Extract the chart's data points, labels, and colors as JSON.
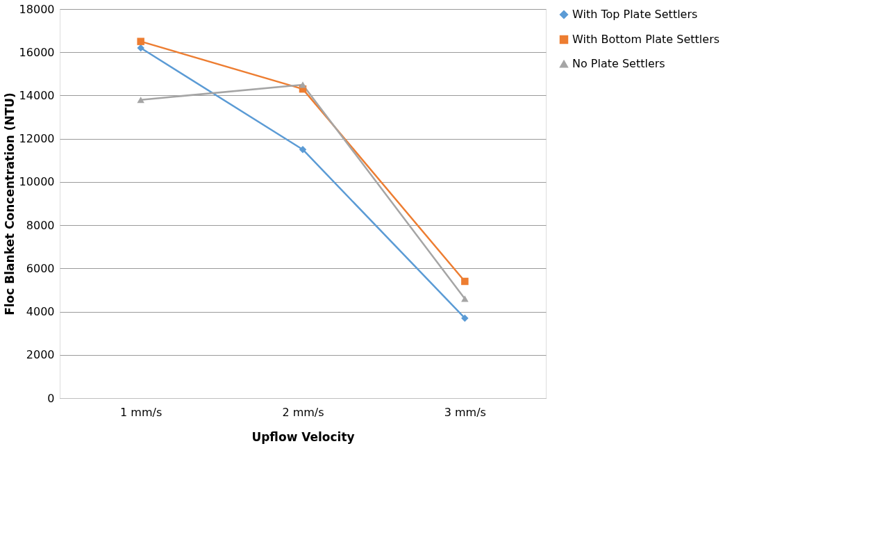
{
  "chart_data": {
    "type": "line",
    "xlabel": "Upflow Velocity",
    "ylabel": "Floc Blanket Concentration (NTU)",
    "categories": [
      "1 mm/s",
      "2 mm/s",
      "3 mm/s"
    ],
    "series": [
      {
        "name": "With Top Plate Settlers",
        "color": "#5b9bd5",
        "marker": "diamond",
        "values": [
          16200,
          11500,
          3700
        ]
      },
      {
        "name": "With Bottom Plate Settlers",
        "color": "#ed7d31",
        "marker": "square",
        "values": [
          16500,
          14300,
          5400
        ]
      },
      {
        "name": "No Plate Settlers",
        "color": "#a5a5a5",
        "marker": "triangle",
        "values": [
          13800,
          14500,
          4600
        ]
      }
    ],
    "ylim": [
      0,
      18000
    ],
    "yticks": [
      0,
      2000,
      4000,
      6000,
      8000,
      10000,
      12000,
      14000,
      16000,
      18000
    ],
    "grid": "y",
    "legend": "right",
    "line_style": "solid"
  }
}
